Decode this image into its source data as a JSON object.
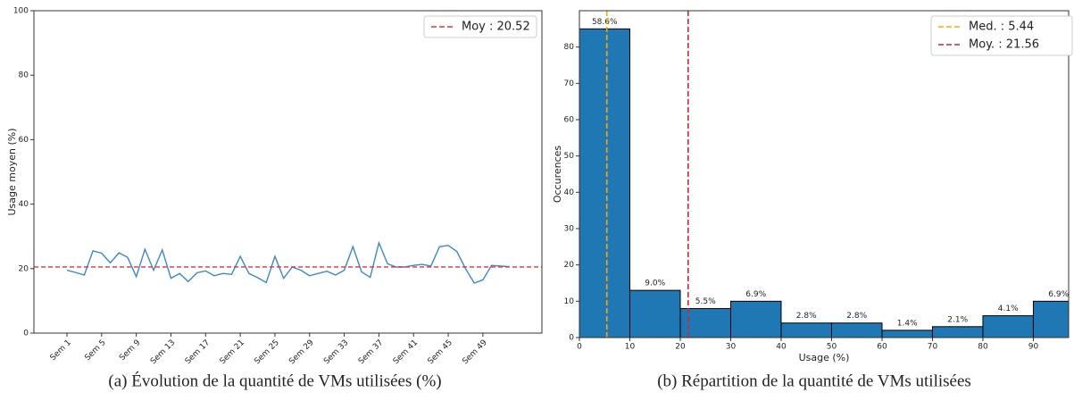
{
  "chart_data": [
    {
      "type": "line",
      "caption": "(a) Évolution de la quantité de VMs utilisées (%)",
      "ylabel": "Usage moyen (%)",
      "categories": [
        "Sem 1",
        null,
        null,
        null,
        "Sem 5",
        null,
        null,
        null,
        "Sem 9",
        null,
        null,
        null,
        "Sem 13",
        null,
        null,
        null,
        "Sem 17",
        null,
        null,
        null,
        "Sem 21",
        null,
        null,
        null,
        "Sem 25",
        null,
        null,
        null,
        "Sem 29",
        null,
        null,
        null,
        "Sem 33",
        null,
        null,
        null,
        "Sem 37",
        null,
        null,
        null,
        "Sem 41",
        null,
        null,
        null,
        "Sem 45",
        null,
        null,
        null,
        "Sem 49",
        null,
        null,
        null
      ],
      "series": [
        {
          "color": "#3b88c4",
          "values": [
            19.5,
            18.8,
            18,
            25.5,
            24.8,
            21.8,
            24.9,
            23.5,
            17.5,
            26,
            19.5,
            25.8,
            17,
            18.5,
            16,
            18.7,
            19.3,
            17.8,
            18.5,
            18.2,
            23.8,
            18.5,
            17.2,
            15.7,
            23.8,
            17,
            20.5,
            19.5,
            17.8,
            18.5,
            19.2,
            18,
            19.5,
            26.8,
            19,
            17.3,
            28,
            21.5,
            20.5,
            20.5,
            21,
            21.3,
            20.8,
            26.8,
            27.2,
            25.3,
            20,
            15.5,
            16.5,
            21,
            20.8,
            20.6
          ]
        }
      ],
      "ref_lines": [
        {
          "label": "Moy : 20.52",
          "value": 20.52,
          "color": "#e8303a"
        }
      ],
      "ylim": [
        0,
        100
      ],
      "yticks": [
        0,
        20,
        40,
        60,
        80,
        100
      ],
      "legend": "upper right"
    },
    {
      "type": "histogram",
      "caption": "(b) Répartition de la quantité de VMs utilisées",
      "xlabel": "Usage (%)",
      "ylabel": "Occurences",
      "bins": [
        0,
        10,
        20,
        30,
        40,
        50,
        60,
        70,
        80,
        90,
        100
      ],
      "values": [
        85,
        13,
        8,
        10,
        4,
        4,
        2,
        3,
        6,
        10
      ],
      "bar_labels": [
        "58.6%",
        "9.0%",
        "5.5%",
        "6.9%",
        "2.8%",
        "2.8%",
        "1.4%",
        "2.1%",
        "4.1%",
        "6.9%"
      ],
      "color": "#1f77b4",
      "ref_lines": [
        {
          "label": "Med. : 5.44",
          "value": 5.44,
          "color": "#ffa500"
        },
        {
          "label": "Moy. : 21.56",
          "value": 21.56,
          "color": "#d62728"
        }
      ],
      "xlim": [
        0,
        97
      ],
      "ylim": [
        0,
        90
      ],
      "xticks": [
        0,
        10,
        20,
        30,
        40,
        50,
        60,
        70,
        80,
        90
      ],
      "yticks": [
        0,
        10,
        20,
        30,
        40,
        50,
        60,
        70,
        80
      ],
      "legend": "upper right"
    }
  ]
}
